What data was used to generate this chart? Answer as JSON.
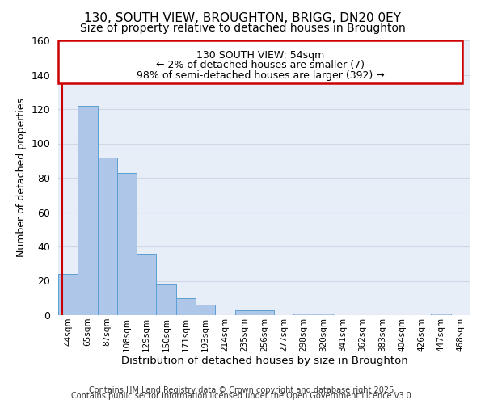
{
  "title1": "130, SOUTH VIEW, BROUGHTON, BRIGG, DN20 0EY",
  "title2": "Size of property relative to detached houses in Broughton",
  "xlabel": "Distribution of detached houses by size in Broughton",
  "ylabel": "Number of detached properties",
  "categories": [
    "44sqm",
    "65sqm",
    "87sqm",
    "108sqm",
    "129sqm",
    "150sqm",
    "171sqm",
    "193sqm",
    "214sqm",
    "235sqm",
    "256sqm",
    "277sqm",
    "298sqm",
    "320sqm",
    "341sqm",
    "362sqm",
    "383sqm",
    "404sqm",
    "426sqm",
    "447sqm",
    "468sqm"
  ],
  "values": [
    24,
    122,
    92,
    83,
    36,
    18,
    10,
    6,
    0,
    3,
    3,
    0,
    1,
    1,
    0,
    0,
    0,
    0,
    0,
    1,
    0
  ],
  "bar_color": "#aec6e8",
  "bar_edge_color": "#5a9fd4",
  "bar_width": 1.0,
  "ylim": [
    0,
    160
  ],
  "yticks": [
    0,
    20,
    40,
    60,
    80,
    100,
    120,
    140,
    160
  ],
  "vline_color": "#cc0000",
  "annotation_title": "130 SOUTH VIEW: 54sqm",
  "annotation_line1": "← 2% of detached houses are smaller (7)",
  "annotation_line2": "98% of semi-detached houses are larger (392) →",
  "footer1": "Contains HM Land Registry data © Crown copyright and database right 2025.",
  "footer2": "Contains public sector information licensed under the Open Government Licence v3.0.",
  "bg_color": "#e8eef8",
  "grid_color": "#d0d8e8",
  "fig_bg_color": "#ffffff",
  "title_fontsize": 11,
  "subtitle_fontsize": 10,
  "annot_fontsize": 9,
  "footer_fontsize": 7
}
